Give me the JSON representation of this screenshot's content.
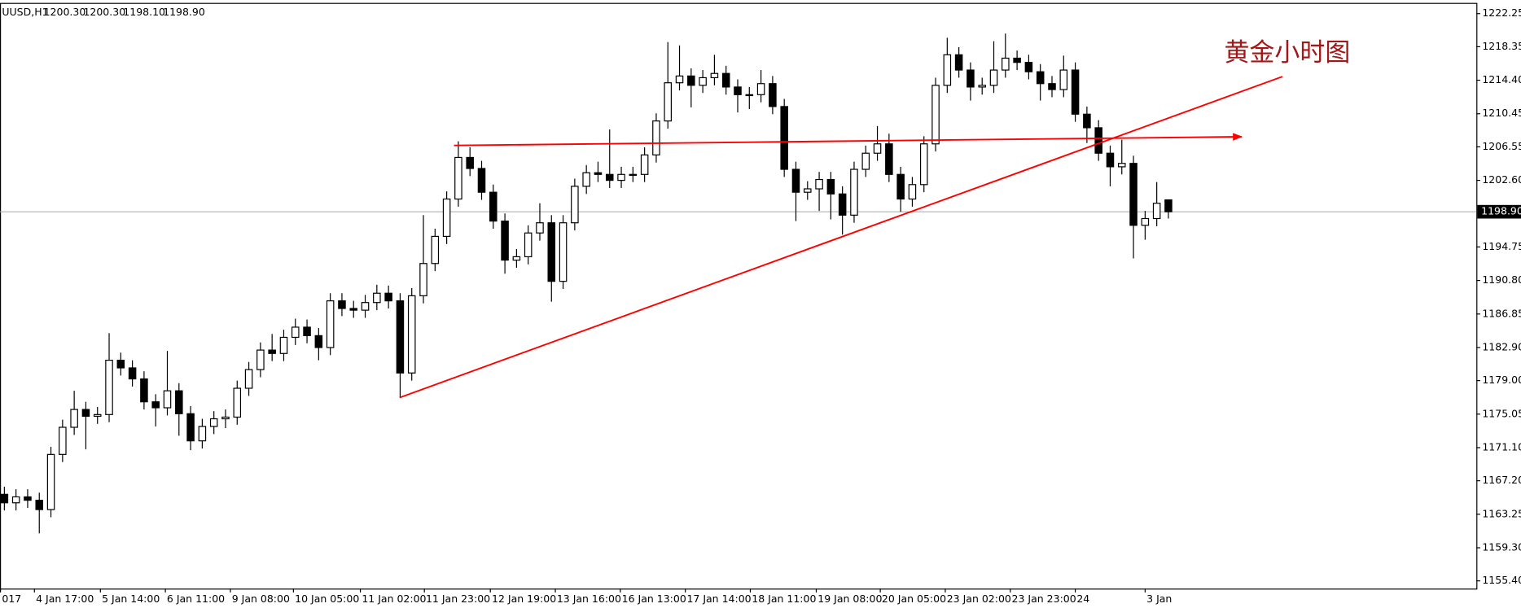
{
  "chart_data": {
    "type": "candlestick",
    "title": "UUSD,H1",
    "header_values": [
      "1200.30",
      "1200.30",
      "1198.10",
      "1198.90"
    ],
    "annotation": "黄金小时图",
    "ylim": [
      1154.49,
      1223.51
    ],
    "yticks": [
      {
        "value": 1222.25,
        "label": "1222.25"
      },
      {
        "value": 1218.35,
        "label": "1218.35"
      },
      {
        "value": 1214.4,
        "label": "1214.40"
      },
      {
        "value": 1210.45,
        "label": "1210.45"
      },
      {
        "value": 1206.55,
        "label": "1206.55"
      },
      {
        "value": 1202.6,
        "label": "1202.60"
      },
      {
        "value": 1194.75,
        "label": "1194.75"
      },
      {
        "value": 1190.8,
        "label": "1190.80"
      },
      {
        "value": 1186.85,
        "label": "1186.85"
      },
      {
        "value": 1182.9,
        "label": "1182.90"
      },
      {
        "value": 1179,
        "label": "1179.00"
      },
      {
        "value": 1175.05,
        "label": "1175.05"
      },
      {
        "value": 1171.1,
        "label": "1171.10"
      },
      {
        "value": 1167.2,
        "label": "1167.20"
      },
      {
        "value": 1163.25,
        "label": "1163.25"
      },
      {
        "value": 1159.3,
        "label": "1159.30"
      },
      {
        "value": 1155.4,
        "label": "1155.40"
      }
    ],
    "price_line": {
      "value": 1198.9,
      "label": "1198.90"
    },
    "x_labels": [
      "017",
      "4 Jan 17:00",
      "5 Jan 14:00",
      "6 Jan 11:00",
      "9 Jan 08:00",
      "10 Jan 05:00",
      "11 Jan 02:00",
      "11 Jan 23:00",
      "12 Jan 19:00",
      "13 Jan 16:00",
      "16 Jan 13:00",
      "17 Jan 14:00",
      "18 Jan 11:00",
      "19 Jan 08:00",
      "20 Jan 05:00",
      "23 Jan 02:00",
      "23 Jan 23:00",
      "24",
      "3 Jan"
    ],
    "up_color": "#ffffff",
    "down_color": "#000000",
    "open": [
      1165.6,
      1164.6,
      1165.3,
      1164.9,
      1163.8,
      1170.3,
      1173.5,
      1175.6,
      1174.8,
      1175.0,
      1181.4,
      1180.5,
      1179.2,
      1176.5,
      1175.8,
      1177.8,
      1175.1,
      1171.9,
      1173.6,
      1174.5,
      1174.7,
      1178.1,
      1180.3,
      1182.6,
      1182.2,
      1184.1,
      1185.3,
      1184.3,
      1182.9,
      1188.4,
      1187.5,
      1187.3,
      1188.2,
      1189.3,
      1188.4,
      1179.9,
      1189.0,
      1192.8,
      1196.0,
      1200.4,
      1205.3,
      1204.0,
      1201.2,
      1197.8,
      1193.2,
      1193.6,
      1196.4,
      1197.6,
      1190.7,
      1197.6,
      1201.9,
      1203.5,
      1203.3,
      1202.6,
      1203.3,
      1203.3,
      1205.6,
      1209.6,
      1214.1,
      1214.9,
      1213.8,
      1214.7,
      1215.2,
      1213.6,
      1212.7,
      1212.7,
      1214.0,
      1211.3,
      1203.9,
      1201.2,
      1201.6,
      1202.7,
      1201.0,
      1198.5,
      1203.9,
      1205.8,
      1206.9,
      1203.3,
      1200.4,
      1202.1,
      1206.9,
      1213.8,
      1217.4,
      1215.6,
      1213.6,
      1213.8,
      1215.6,
      1217.0,
      1216.5,
      1215.4,
      1214.0,
      1213.3,
      1215.6,
      1210.4,
      1208.8,
      1205.8,
      1204.2,
      1204.6,
      1197.3,
      1198.1,
      1200.3
    ],
    "high": [
      1166.5,
      1166.2,
      1166.2,
      1165.8,
      1171.2,
      1174.4,
      1177.8,
      1176.5,
      1175.9,
      1184.6,
      1182.3,
      1181.4,
      1180.1,
      1177.4,
      1182.5,
      1178.7,
      1176.0,
      1174.5,
      1175.4,
      1175.6,
      1179.0,
      1181.2,
      1183.5,
      1184.5,
      1185.0,
      1186.3,
      1186.2,
      1185.2,
      1189.3,
      1189.3,
      1188.4,
      1189.1,
      1190.3,
      1190.2,
      1189.3,
      1189.9,
      1198.5,
      1196.9,
      1201.3,
      1207.2,
      1206.5,
      1204.9,
      1202.1,
      1198.7,
      1194.5,
      1197.3,
      1199.9,
      1198.5,
      1198.5,
      1202.8,
      1204.4,
      1204.8,
      1208.6,
      1204.2,
      1204.2,
      1206.5,
      1210.5,
      1218.9,
      1218.5,
      1215.8,
      1215.6,
      1217.4,
      1216.1,
      1214.5,
      1213.6,
      1215.6,
      1214.9,
      1212.2,
      1204.8,
      1202.5,
      1203.6,
      1203.6,
      1201.9,
      1204.8,
      1206.7,
      1209.0,
      1208.1,
      1204.2,
      1203.0,
      1207.8,
      1214.7,
      1219.4,
      1218.3,
      1216.5,
      1214.7,
      1219.0,
      1219.9,
      1217.9,
      1217.4,
      1216.3,
      1214.9,
      1217.3,
      1216.5,
      1211.3,
      1209.7,
      1206.7,
      1207.4,
      1205.5,
      1199.0,
      1202.4,
      1200.3
    ],
    "low": [
      1163.7,
      1163.7,
      1164.0,
      1161.0,
      1162.9,
      1169.4,
      1172.6,
      1170.9,
      1173.9,
      1174.1,
      1179.6,
      1178.3,
      1175.6,
      1173.6,
      1174.9,
      1172.5,
      1170.8,
      1171.0,
      1172.7,
      1173.4,
      1173.8,
      1177.2,
      1179.4,
      1181.3,
      1181.3,
      1183.2,
      1183.4,
      1181.4,
      1182.0,
      1186.6,
      1186.4,
      1186.4,
      1187.3,
      1187.5,
      1177.0,
      1179.0,
      1188.1,
      1191.9,
      1195.1,
      1199.5,
      1203.1,
      1200.3,
      1196.9,
      1191.6,
      1192.3,
      1192.7,
      1195.5,
      1188.3,
      1189.8,
      1196.7,
      1201.0,
      1202.4,
      1201.7,
      1201.7,
      1202.4,
      1202.4,
      1204.7,
      1208.7,
      1213.2,
      1211.2,
      1212.9,
      1213.8,
      1212.7,
      1210.6,
      1211.0,
      1211.8,
      1210.4,
      1203.0,
      1197.8,
      1200.3,
      1199.0,
      1198.0,
      1196.2,
      1197.6,
      1203.0,
      1204.9,
      1202.4,
      1198.9,
      1199.5,
      1201.2,
      1206.0,
      1212.9,
      1214.7,
      1212.0,
      1212.7,
      1212.9,
      1214.7,
      1215.6,
      1214.5,
      1212.0,
      1212.4,
      1212.4,
      1209.5,
      1207.0,
      1204.9,
      1201.9,
      1203.3,
      1193.4,
      1195.6,
      1197.2,
      1198.1
    ],
    "close": [
      1164.6,
      1165.3,
      1164.9,
      1163.8,
      1170.3,
      1173.5,
      1175.6,
      1174.8,
      1175.0,
      1181.4,
      1180.5,
      1179.2,
      1176.5,
      1175.8,
      1177.8,
      1175.1,
      1171.9,
      1173.6,
      1174.5,
      1174.7,
      1178.1,
      1180.3,
      1182.6,
      1182.2,
      1184.1,
      1185.3,
      1184.3,
      1182.9,
      1188.4,
      1187.5,
      1187.3,
      1188.2,
      1189.3,
      1188.4,
      1179.9,
      1189.0,
      1192.8,
      1196.0,
      1200.4,
      1205.3,
      1204.0,
      1201.2,
      1197.8,
      1193.2,
      1193.6,
      1196.4,
      1197.6,
      1190.7,
      1197.6,
      1201.9,
      1203.5,
      1203.3,
      1202.6,
      1203.3,
      1203.3,
      1205.6,
      1209.6,
      1214.1,
      1214.9,
      1213.8,
      1214.7,
      1215.2,
      1213.6,
      1212.7,
      1212.7,
      1214.0,
      1211.3,
      1203.9,
      1201.2,
      1201.6,
      1202.7,
      1201.0,
      1198.5,
      1203.9,
      1205.8,
      1206.9,
      1203.3,
      1200.4,
      1202.1,
      1206.9,
      1213.8,
      1217.4,
      1215.6,
      1213.6,
      1213.8,
      1215.6,
      1217.0,
      1216.5,
      1215.4,
      1214.0,
      1213.3,
      1215.6,
      1210.4,
      1208.8,
      1205.8,
      1204.2,
      1204.6,
      1197.3,
      1198.1,
      1199.9,
      1198.9
    ]
  }
}
